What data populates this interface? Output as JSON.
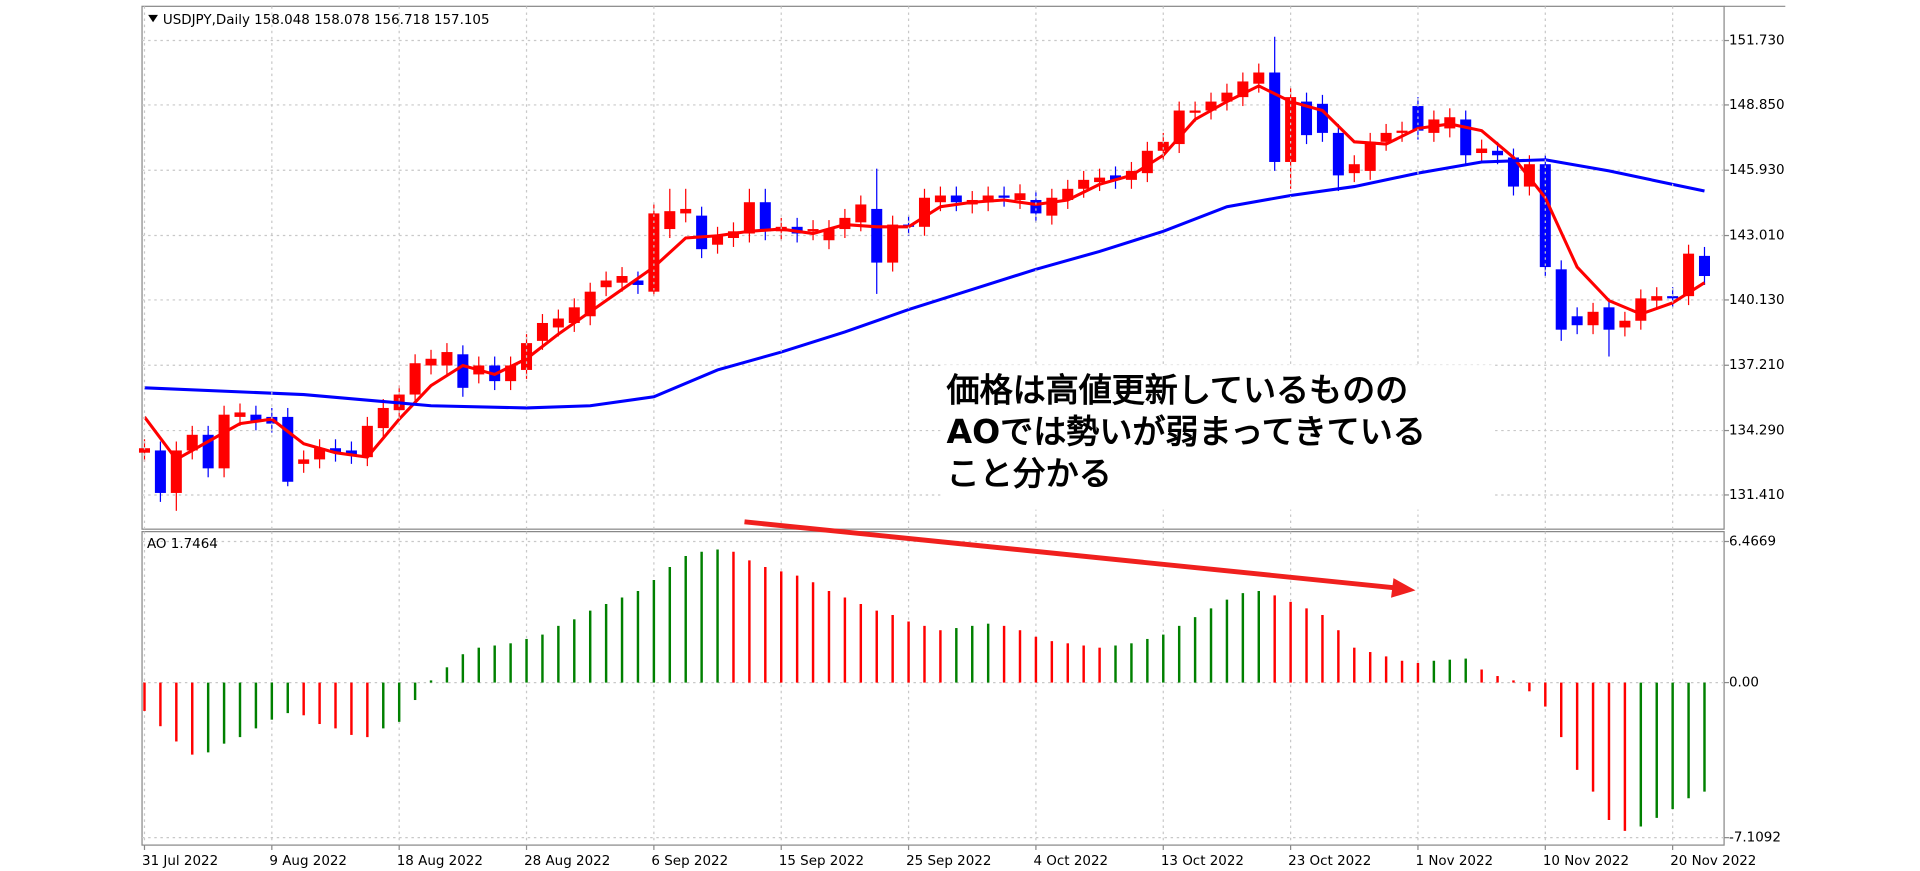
{
  "chart_data": [
    {
      "type": "candlestick",
      "title": "USDJPY,Daily  158.048 158.078 156.718 157.105",
      "annotation": [
        "価格は高値更新しているものの",
        "AOでは勢いが弱まってきている",
        "こと分かる"
      ],
      "up_color": "#ff0000",
      "down_color": "#0000ff",
      "open": [
        133.3,
        133.4,
        131.5,
        133.4,
        134.1,
        132.6,
        134.9,
        135.0,
        134.9,
        134.9,
        132.8,
        133.0,
        133.5,
        133.4,
        133.1,
        134.4,
        135.2,
        135.9,
        137.2,
        137.2,
        137.7,
        136.8,
        137.2,
        136.5,
        137.0,
        138.3,
        138.9,
        139.1,
        139.4,
        140.7,
        140.9,
        141.0,
        140.5,
        143.3,
        144.0,
        143.9,
        142.6,
        142.9,
        143.1,
        144.5,
        143.2,
        143.4,
        143.2,
        142.8,
        143.3,
        143.6,
        144.2,
        141.8,
        143.5,
        143.4,
        144.5,
        144.8,
        144.4,
        144.5,
        144.8,
        144.6,
        144.6,
        143.9,
        144.6,
        145.1,
        145.4,
        145.7,
        145.5,
        145.8,
        146.8,
        147.1,
        148.5,
        148.6,
        149.0,
        149.2,
        149.8,
        150.3,
        146.3,
        149.0,
        148.9,
        147.6,
        145.8,
        145.9,
        147.2,
        147.6,
        148.8,
        147.6,
        147.8,
        148.2,
        146.7,
        146.8,
        146.5,
        145.2,
        146.2,
        141.5,
        139.4,
        139.0,
        139.8,
        138.9,
        139.2,
        140.1,
        140.3,
        140.3,
        142.1
      ],
      "high": [
        133.9,
        133.8,
        133.8,
        134.5,
        134.5,
        135.4,
        135.5,
        135.4,
        135.3,
        135.3,
        133.4,
        133.9,
        133.9,
        133.8,
        134.9,
        135.7,
        136.3,
        137.7,
        137.9,
        138.2,
        138.1,
        137.6,
        137.6,
        137.6,
        138.6,
        139.5,
        139.7,
        140.2,
        140.9,
        141.4,
        141.6,
        141.4,
        144.4,
        145.1,
        145.1,
        144.3,
        143.4,
        143.6,
        145.1,
        145.1,
        143.8,
        143.8,
        143.7,
        143.7,
        144.2,
        144.8,
        146.0,
        143.9,
        143.9,
        145.1,
        145.2,
        145.2,
        145.0,
        145.2,
        145.2,
        145.3,
        145.0,
        145.1,
        145.5,
        145.9,
        146.0,
        146.1,
        146.3,
        147.2,
        147.6,
        149.0,
        149.0,
        149.4,
        149.8,
        150.3,
        150.7,
        151.9,
        149.6,
        149.4,
        149.3,
        148.0,
        146.6,
        147.6,
        148.0,
        148.1,
        149.2,
        148.6,
        148.7,
        148.6,
        147.3,
        147.2,
        146.9,
        146.6,
        146.6,
        141.9,
        139.8,
        140.0,
        140.2,
        139.6,
        140.6,
        140.7,
        140.7,
        142.6,
        142.5
      ],
      "low": [
        132.9,
        131.1,
        130.7,
        133.0,
        132.2,
        132.2,
        134.5,
        134.3,
        134.2,
        131.8,
        132.4,
        132.6,
        132.9,
        132.8,
        132.7,
        134.0,
        134.8,
        135.5,
        136.8,
        136.8,
        135.8,
        136.4,
        136.1,
        136.1,
        136.6,
        137.9,
        138.5,
        138.7,
        139.0,
        140.3,
        140.5,
        140.4,
        140.3,
        142.9,
        143.6,
        142.0,
        142.2,
        142.5,
        142.7,
        142.8,
        142.8,
        142.7,
        142.8,
        142.4,
        142.9,
        143.2,
        140.4,
        141.4,
        143.0,
        143.0,
        144.1,
        144.1,
        144.0,
        144.1,
        144.3,
        144.2,
        143.6,
        143.5,
        144.2,
        144.7,
        145.0,
        145.1,
        145.1,
        145.4,
        146.4,
        146.7,
        148.1,
        148.2,
        148.6,
        148.8,
        149.4,
        145.9,
        145.1,
        147.1,
        147.2,
        145.0,
        145.4,
        145.5,
        146.8,
        147.2,
        147.3,
        147.2,
        147.4,
        146.2,
        146.3,
        146.2,
        144.8,
        144.8,
        141.2,
        138.3,
        138.6,
        138.6,
        137.6,
        138.5,
        138.8,
        139.7,
        139.8,
        139.9,
        140.8
      ],
      "close": [
        133.5,
        131.5,
        133.4,
        134.1,
        132.6,
        135.0,
        135.1,
        134.7,
        134.6,
        132.0,
        133.0,
        133.5,
        133.3,
        133.2,
        134.5,
        135.3,
        135.9,
        137.3,
        137.5,
        137.8,
        136.2,
        137.2,
        136.5,
        137.2,
        138.2,
        139.1,
        139.3,
        139.8,
        140.5,
        141.0,
        141.2,
        140.8,
        144.0,
        144.1,
        144.2,
        142.4,
        143.0,
        143.2,
        144.5,
        143.2,
        143.4,
        143.1,
        143.3,
        143.3,
        143.8,
        144.4,
        141.8,
        143.5,
        143.4,
        144.7,
        144.8,
        144.5,
        144.6,
        144.8,
        144.7,
        144.9,
        144.0,
        144.7,
        145.1,
        145.5,
        145.6,
        145.5,
        145.9,
        146.8,
        147.2,
        148.6,
        148.6,
        149.0,
        149.4,
        149.9,
        150.3,
        146.3,
        149.2,
        147.5,
        147.6,
        145.7,
        146.2,
        147.2,
        147.6,
        147.7,
        147.7,
        148.2,
        148.3,
        146.6,
        146.9,
        146.6,
        145.2,
        146.2,
        141.6,
        138.8,
        139.0,
        139.6,
        138.8,
        139.2,
        140.2,
        140.3,
        140.2,
        142.2,
        141.2
      ],
      "series": [
        {
          "color": "#ff0000",
          "x": [
            0,
            2,
            4,
            6,
            8,
            10,
            12,
            14,
            16,
            18,
            20,
            22,
            24,
            26,
            28,
            30,
            32,
            34,
            36,
            38,
            40,
            42,
            44,
            46,
            48,
            50,
            52,
            54,
            56,
            58,
            60,
            62,
            64,
            66,
            68,
            70,
            72,
            74,
            76,
            78,
            80,
            82,
            84,
            86,
            88,
            90,
            92,
            94,
            96,
            98
          ],
          "values": [
            134.9,
            133.0,
            133.8,
            134.6,
            134.8,
            133.7,
            133.3,
            133.1,
            134.8,
            136.3,
            137.2,
            136.8,
            137.5,
            138.6,
            139.6,
            140.6,
            141.6,
            142.9,
            143.0,
            143.2,
            143.3,
            143.1,
            143.5,
            143.4,
            143.4,
            144.3,
            144.5,
            144.6,
            144.4,
            144.6,
            145.3,
            145.7,
            146.6,
            148.2,
            149.0,
            149.7,
            149.0,
            148.6,
            147.2,
            147.1,
            147.8,
            148.0,
            147.7,
            146.5,
            144.7,
            141.6,
            140.1,
            139.5,
            140.0,
            140.9
          ]
        },
        {
          "color": "#0000ff",
          "x": [
            0,
            10,
            18,
            24,
            28,
            32,
            36,
            40,
            44,
            48,
            52,
            56,
            60,
            64,
            68,
            72,
            76,
            80,
            84,
            88,
            92,
            96,
            98
          ],
          "values": [
            136.2,
            135.9,
            135.4,
            135.3,
            135.4,
            135.8,
            137.0,
            137.8,
            138.7,
            139.7,
            140.6,
            141.5,
            142.3,
            143.2,
            144.3,
            144.8,
            145.2,
            145.8,
            146.3,
            146.4,
            145.9,
            145.3,
            145.0
          ]
        }
      ],
      "ylim": [
        129.88,
        153.26
      ],
      "yticks": [
        {
          "value": 131.41,
          "label": "131.410"
        },
        {
          "value": 134.29,
          "label": "134.290"
        },
        {
          "value": 137.21,
          "label": "137.210"
        },
        {
          "value": 140.13,
          "label": "140.130"
        },
        {
          "value": 143.01,
          "label": "143.010"
        },
        {
          "value": 145.93,
          "label": "145.930"
        },
        {
          "value": 148.85,
          "label": "148.850"
        },
        {
          "value": 151.73,
          "label": "151.730"
        }
      ],
      "grid": true
    },
    {
      "type": "bar",
      "title": "AO 1.7464",
      "up_color": "#008000",
      "down_color": "#ff0000",
      "categories": [
        "31 Jul 2022",
        null,
        null,
        null,
        null,
        null,
        null,
        null,
        "9 Aug 2022",
        null,
        null,
        null,
        null,
        null,
        null,
        null,
        "18 Aug 2022",
        null,
        null,
        null,
        null,
        null,
        null,
        null,
        "28 Aug 2022",
        null,
        null,
        null,
        null,
        null,
        null,
        null,
        "6 Sep 2022",
        null,
        null,
        null,
        null,
        null,
        null,
        null,
        "15 Sep 2022",
        null,
        null,
        null,
        null,
        null,
        null,
        null,
        "25 Sep 2022",
        null,
        null,
        null,
        null,
        null,
        null,
        null,
        "4 Oct 2022",
        null,
        null,
        null,
        null,
        null,
        null,
        null,
        "13 Oct 2022",
        null,
        null,
        null,
        null,
        null,
        null,
        null,
        "23 Oct 2022",
        null,
        null,
        null,
        null,
        null,
        null,
        null,
        "1 Nov 2022",
        null,
        null,
        null,
        null,
        null,
        null,
        null,
        "10 Nov 2022",
        null,
        null,
        null,
        null,
        null,
        null,
        null,
        "20 Nov 2022",
        null,
        null
      ],
      "values": [
        -1.3,
        -2.0,
        -2.7,
        -3.3,
        -3.2,
        -2.8,
        -2.5,
        -2.1,
        -1.7,
        -1.4,
        -1.5,
        -1.9,
        -2.1,
        -2.4,
        -2.5,
        -2.1,
        -1.8,
        -0.8,
        0.1,
        0.7,
        1.3,
        1.6,
        1.7,
        1.8,
        2.0,
        2.2,
        2.6,
        2.9,
        3.3,
        3.6,
        3.9,
        4.2,
        4.7,
        5.3,
        5.8,
        6.0,
        6.1,
        6.0,
        5.6,
        5.3,
        5.1,
        4.9,
        4.6,
        4.2,
        3.9,
        3.6,
        3.3,
        3.1,
        2.8,
        2.6,
        2.4,
        2.5,
        2.6,
        2.7,
        2.6,
        2.4,
        2.1,
        1.9,
        1.8,
        1.7,
        1.6,
        1.7,
        1.8,
        2.0,
        2.2,
        2.6,
        3.0,
        3.4,
        3.8,
        4.1,
        4.2,
        4.0,
        3.7,
        3.4,
        3.1,
        2.4,
        1.6,
        1.4,
        1.2,
        1.0,
        0.9,
        1.0,
        1.05,
        1.1,
        0.6,
        0.3,
        0.1,
        -0.4,
        -1.1,
        -2.5,
        -4.0,
        -5.0,
        -6.3,
        -6.8,
        -6.6,
        -6.2,
        -5.8,
        -5.3,
        -5.0
      ],
      "ylim": [
        -7.45,
        6.92
      ],
      "yticks": [
        -7.1092,
        {
          "value": 0,
          "label": "0.00"
        },
        6.4669
      ],
      "grid": true
    }
  ]
}
